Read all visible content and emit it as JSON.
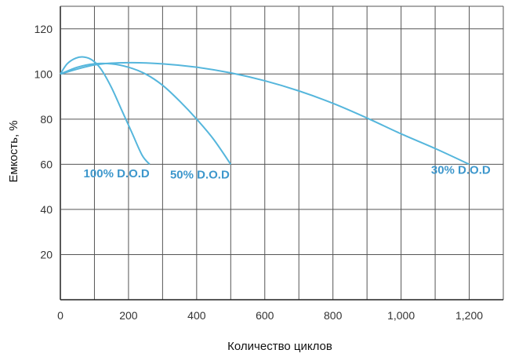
{
  "chart_data": {
    "type": "line",
    "xlabel": "Количество циклов",
    "ylabel": "Емкость, %",
    "xlim": [
      0,
      1300
    ],
    "ylim": [
      0,
      130
    ],
    "grid": true,
    "x_ticks": [
      {
        "value": 0,
        "label": "0"
      },
      {
        "value": 200,
        "label": "200"
      },
      {
        "value": 400,
        "label": "400"
      },
      {
        "value": 600,
        "label": "600"
      },
      {
        "value": 800,
        "label": "800"
      },
      {
        "value": 1000,
        "label": "1,000"
      },
      {
        "value": 1200,
        "label": "1,200"
      }
    ],
    "y_ticks": [
      {
        "value": 20,
        "label": "20"
      },
      {
        "value": 40,
        "label": "40"
      },
      {
        "value": 60,
        "label": "60"
      },
      {
        "value": 80,
        "label": "80"
      },
      {
        "value": 100,
        "label": "100"
      },
      {
        "value": 120,
        "label": "120"
      }
    ],
    "series_color": "#55b6dc",
    "label_color": "#3d97cc",
    "series": [
      {
        "name": "100% D.O.D",
        "x": [
          0,
          20,
          45,
          70,
          95,
          120,
          150,
          180,
          210,
          240,
          262
        ],
        "y": [
          100,
          104.5,
          107,
          107.5,
          106,
          102,
          94,
          84,
          74,
          64,
          60
        ]
      },
      {
        "name": "50% D.O.D",
        "x": [
          0,
          50,
          100,
          150,
          200,
          250,
          300,
          350,
          400,
          450,
          500
        ],
        "y": [
          100,
          103,
          104.5,
          104.5,
          103,
          100,
          95,
          88,
          80,
          71,
          60
        ]
      },
      {
        "name": "30% D.O.D",
        "x": [
          0,
          100,
          200,
          300,
          400,
          500,
          600,
          700,
          800,
          900,
          1000,
          1100,
          1200
        ],
        "y": [
          100,
          104,
          105,
          104.5,
          103,
          100.5,
          97,
          92.5,
          87,
          80.5,
          73.5,
          67,
          60
        ]
      }
    ],
    "annotations": [
      {
        "series": 0,
        "text": "100% D.O.D",
        "x": 68,
        "y": 56
      },
      {
        "series": 1,
        "text": "50% D.O.D",
        "x": 322,
        "y": 55.5
      },
      {
        "series": 2,
        "text": "30% D.O.D",
        "x": 1088,
        "y": 57.5
      }
    ]
  }
}
